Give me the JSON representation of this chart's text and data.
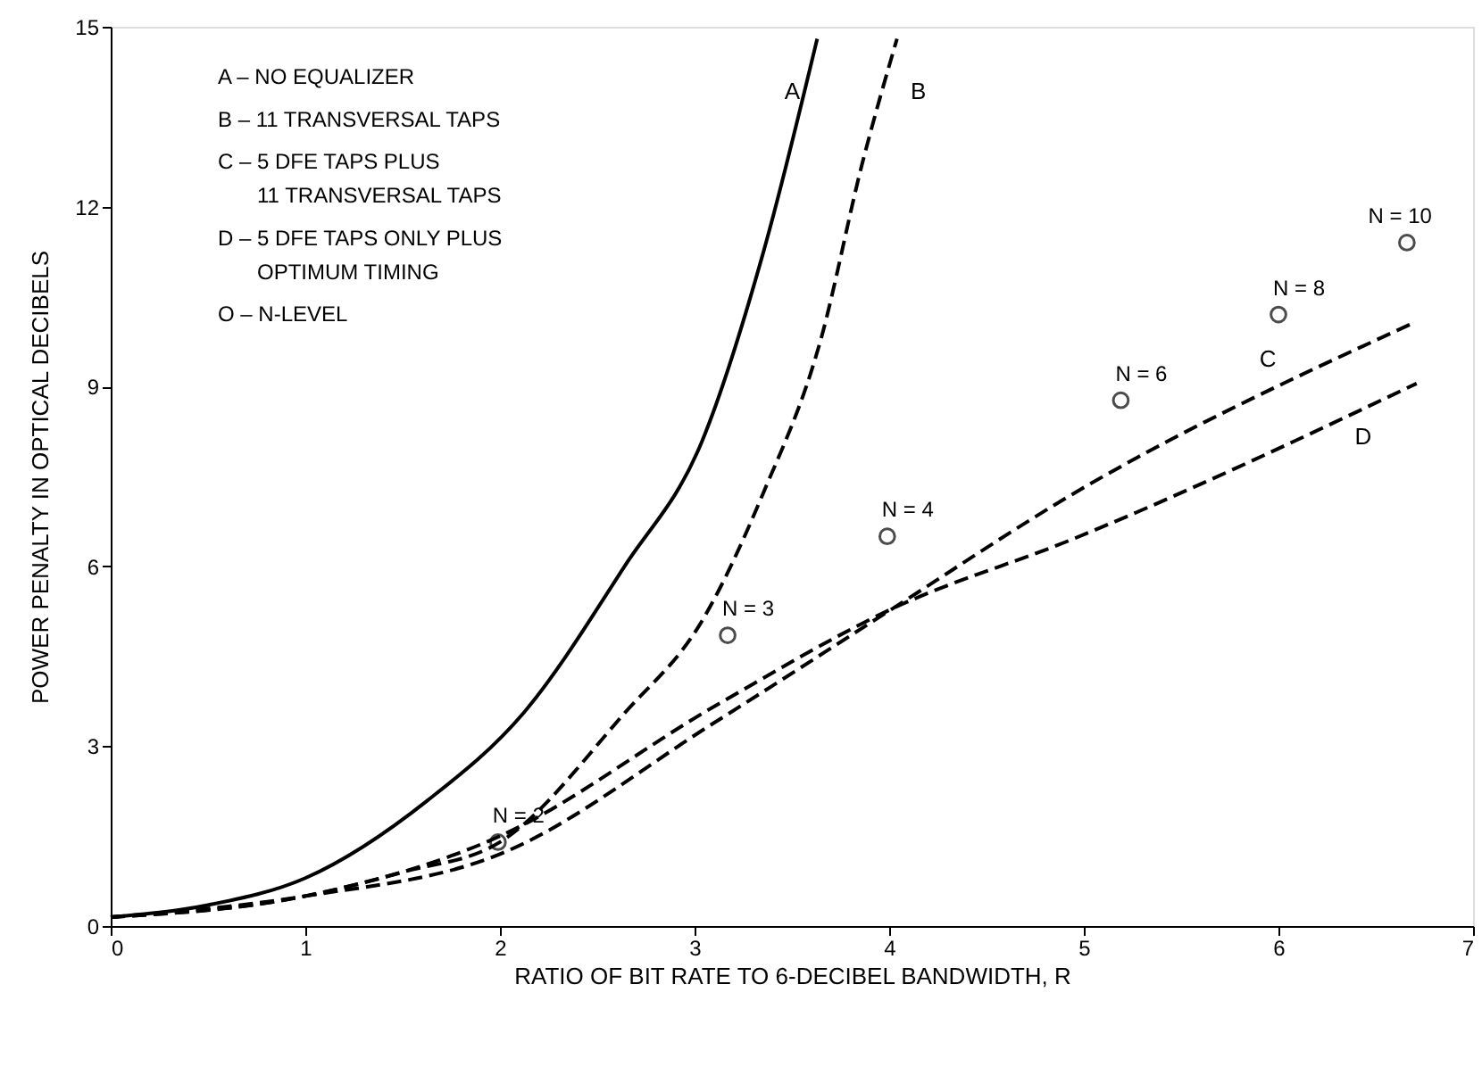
{
  "chart_data": {
    "type": "line",
    "xlabel": "RATIO OF BIT RATE TO 6-DECIBEL BANDWIDTH, R",
    "ylabel": "POWER PENALTY IN OPTICAL DECIBELS",
    "xlim": [
      0,
      7
    ],
    "ylim": [
      0,
      15
    ],
    "xticks": [
      0,
      1,
      2,
      3,
      4,
      5,
      6,
      7
    ],
    "yticks": [
      0,
      3,
      6,
      9,
      12,
      15
    ],
    "grid": false,
    "marker": "none",
    "series": [
      {
        "name": "A",
        "line_style": "solid",
        "color": "#000000",
        "x": [
          0,
          0.5,
          1,
          1.63,
          2.12,
          2.64,
          3.04,
          3.35,
          3.63
        ],
        "values": [
          0.15,
          0.35,
          0.8,
          2.1,
          3.55,
          6.0,
          8.1,
          11.2,
          14.8
        ]
      },
      {
        "name": "B",
        "line_style": "dashed",
        "color": "#000000",
        "x": [
          0,
          1,
          1.5,
          2.0,
          2.64,
          3.04,
          3.35,
          3.65,
          3.86,
          4.04
        ],
        "values": [
          0.15,
          0.5,
          0.9,
          1.4,
          3.55,
          5.1,
          7.2,
          9.8,
          12.7,
          14.8
        ]
      },
      {
        "name": "C",
        "line_style": "dashed",
        "color": "#000000",
        "x": [
          0,
          1,
          2,
          3.1,
          4.02,
          4.94,
          6.68
        ],
        "values": [
          0.15,
          0.5,
          1.2,
          3.39,
          5.3,
          7.2,
          10.04
        ]
      },
      {
        "name": "D",
        "line_style": "dashed",
        "color": "#000000",
        "x": [
          0,
          1,
          2,
          3.1,
          4.02,
          4.94,
          6.71
        ],
        "values": [
          0.15,
          0.5,
          1.5,
          3.66,
          5.3,
          6.45,
          9.05
        ]
      },
      {
        "type": "scatter",
        "marker": "circle",
        "color": "#000000",
        "x": [
          1.99,
          3.17,
          3.99,
          5.19,
          6.0,
          6.66
        ],
        "values": [
          1.4,
          4.85,
          6.5,
          8.77,
          10.2,
          11.4
        ]
      }
    ],
    "annotations": [
      "A – NO EQUALIZER",
      "B – 11 TRANSVERSAL TAPS",
      "C – 5 DFE TAPS PLUS\n11 TRANSVERSAL TAPS",
      "D – 5 DFE TAPS ONLY PLUS\nOPTIMUM TIMING",
      "O – N-LEVEL",
      {
        "text": "N = 2",
        "x": 1.99,
        "y": 1.4
      },
      {
        "text": "N = 3",
        "x": 3.17,
        "y": 4.85
      },
      {
        "text": "N = 4",
        "x": 3.99,
        "y": 6.5
      },
      {
        "text": "N = 6",
        "x": 5.19,
        "y": 8.77
      },
      {
        "text": "N = 8",
        "x": 6.0,
        "y": 10.2
      },
      {
        "text": "N = 10",
        "x": 6.66,
        "y": 11.4
      }
    ]
  }
}
